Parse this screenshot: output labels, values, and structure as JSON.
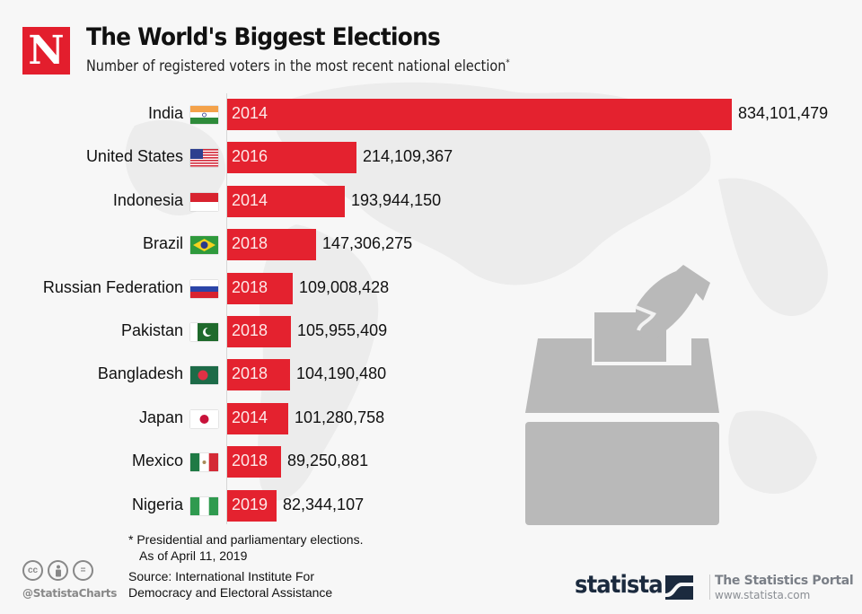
{
  "header": {
    "logo_letter": "N",
    "title": "The World's Biggest Elections",
    "subtitle": "Number of registered voters in the most recent national election",
    "subtitle_mark": "*"
  },
  "chart_data": {
    "type": "bar",
    "orientation": "horizontal",
    "title": "The World's Biggest Elections",
    "subtitle": "Number of registered voters in the most recent national election*",
    "xlabel": "",
    "ylabel": "",
    "xlim": [
      0,
      834101479
    ],
    "grid": false,
    "bar_color": "#e4222f",
    "categories": [
      "India",
      "United States",
      "Indonesia",
      "Brazil",
      "Russian Federation",
      "Pakistan",
      "Bangladesh",
      "Japan",
      "Mexico",
      "Nigeria"
    ],
    "years": [
      "2014",
      "2016",
      "2014",
      "2018",
      "2018",
      "2018",
      "2018",
      "2014",
      "2018",
      "2019"
    ],
    "values": [
      834101479,
      214109367,
      193944150,
      147306275,
      109008428,
      105955409,
      104190480,
      101280758,
      89250881,
      82344107
    ],
    "value_labels": [
      "834,101,479",
      "214,109,367",
      "193,944,150",
      "147,306,275",
      "109,008,428",
      "105,955,409",
      "104,190,480",
      "101,280,758",
      "89,250,881",
      "82,344,107"
    ],
    "flags": [
      "india-flag",
      "us-flag",
      "indonesia-flag",
      "brazil-flag",
      "russia-flag",
      "pakistan-flag",
      "bangladesh-flag",
      "japan-flag",
      "mexico-flag",
      "nigeria-flag"
    ]
  },
  "footer": {
    "note_line1": "* Presidential and parliamentary elections.",
    "note_line2": "As of April 11, 2019",
    "source_line1": "Source: International Institute For",
    "source_line2": "Democracy and Electoral Assistance",
    "cc_icons": [
      "cc",
      "by",
      "nd"
    ],
    "cc_label": "cc",
    "nd_label": "=",
    "handle": "@StatistaCharts",
    "brand": "statista",
    "portal": "The Statistics Portal",
    "url": "www.statista.com"
  },
  "colors": {
    "accent": "#e4222f",
    "brand_dark": "#1b2a3e",
    "illustration": "#b9b9b9"
  }
}
